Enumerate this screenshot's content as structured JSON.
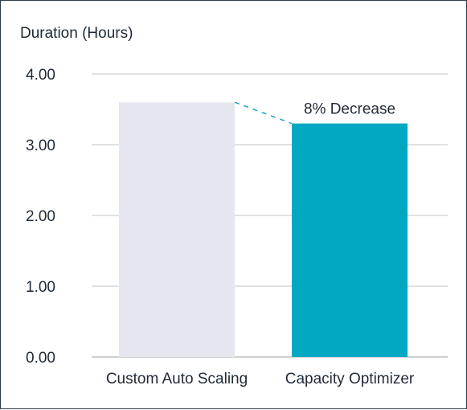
{
  "chart_data": {
    "type": "bar",
    "title": "",
    "xlabel": "",
    "ylabel": "Duration (Hours)",
    "ylim": [
      0,
      4
    ],
    "yticks": [
      "0.00",
      "1.00",
      "2.00",
      "3.00",
      "4.00"
    ],
    "grid": true,
    "categories": [
      "Custom Auto Scaling",
      "Capacity Optimizer"
    ],
    "values": [
      3.6,
      3.3
    ],
    "colors": [
      "#e6e6ee",
      "#00a8c2"
    ],
    "annotation": "8% Decrease"
  }
}
